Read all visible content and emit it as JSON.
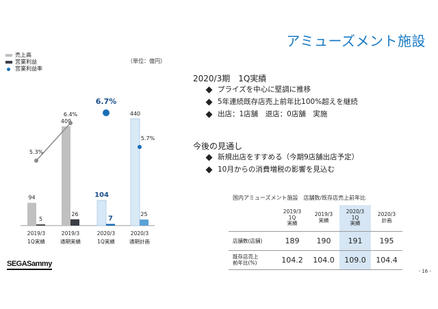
{
  "page": {
    "title": "アミューズメント施設",
    "page_number": "- 16 -",
    "logo": "SEGASammy"
  },
  "legend": {
    "revenue": "売上高",
    "operating_income": "営業利益",
    "operating_margin": "営業利益率"
  },
  "unit_note": "（単位：億円）",
  "colors": {
    "revenue_actual": "#c0c0c0",
    "op_income_actual": "#3a3f45",
    "revenue_current": "#d6e8f7",
    "op_income_current": "#1a6fb8",
    "revenue_plan": "#d9e9f6",
    "op_income_plan": "#5aa2d8",
    "margin_past": "#8a8a8a",
    "margin_current": "#1a6fb8",
    "accent": "#1a7ac4"
  },
  "chart_data": {
    "type": "bar",
    "categories": [
      "2019/3\n1Q実績",
      "2019/3\n通期実績",
      "2020/3\n1Q実績",
      "2020/3\n通期計画"
    ],
    "series": [
      {
        "name": "売上高",
        "values": [
          94,
          409,
          104,
          440
        ]
      },
      {
        "name": "営業利益",
        "values": [
          5,
          26,
          7,
          25
        ]
      },
      {
        "name": "営業利益率",
        "values": [
          5.3,
          6.4,
          6.7,
          5.7
        ],
        "unit": "%"
      }
    ],
    "legend_position": "top-left",
    "grid": false
  },
  "results": {
    "heading": "2020/3期　1Q実績",
    "bullets": [
      "プライズを中心に堅調に推移",
      "5年連続既存店売上前年比100%超えを継続",
      "出店：1店舗　退店：0店舗　実施"
    ]
  },
  "outlook": {
    "heading": "今後の見通し",
    "bullets": [
      "新規出店をすすめる（今期9店舗出店予定）",
      "10月からの消費増税の影響を見込む"
    ]
  },
  "table": {
    "caption": "国内アミューズメント施設　店舗数/既存店売上前年比",
    "columns": [
      [
        "2019/3",
        "1Q",
        "実績"
      ],
      [
        "2019/3",
        "実績"
      ],
      [
        "2020/3",
        "1Q",
        "実績"
      ],
      [
        "2020/3",
        "計画"
      ]
    ],
    "rows": [
      {
        "label": [
          "店舗数(店舗)"
        ],
        "values": [
          "189",
          "190",
          "191",
          "195"
        ]
      },
      {
        "label": [
          "既存店売上",
          "前年比(%)"
        ],
        "values": [
          "104.2",
          "104.0",
          "109.0",
          "104.4"
        ]
      }
    ]
  }
}
